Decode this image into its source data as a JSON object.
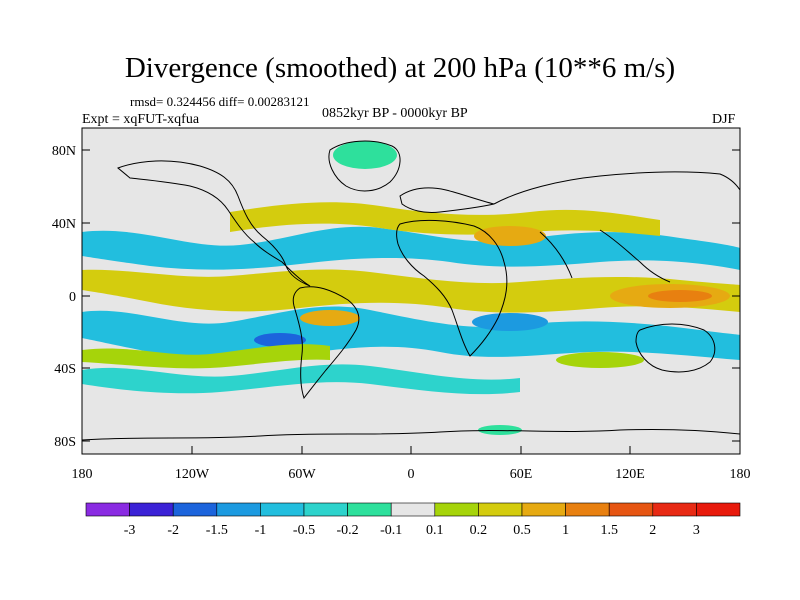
{
  "title": "Divergence (smoothed) at 200 hPa (10**6 m/s)",
  "stats": "rmsd= 0.324456 diff= 0.00283121",
  "experiment": "Expt = xqFUT-xqfua",
  "period": "0852kyr BP - 0000kyr BP",
  "season": "DJF",
  "lat_ticks": [
    "80N",
    "40N",
    "0",
    "40S",
    "80S"
  ],
  "lon_ticks": [
    "180",
    "120W",
    "60W",
    "0",
    "60E",
    "120E",
    "180"
  ],
  "colorbar": {
    "labels": [
      "-3",
      "-2",
      "-1.5",
      "-1",
      "-0.5",
      "-0.2",
      "-0.1",
      "0.1",
      "0.2",
      "0.5",
      "1",
      "1.5",
      "2",
      "3"
    ],
    "colors": [
      "#8a2be2",
      "#3b22d6",
      "#1c64dc",
      "#1c9ae0",
      "#22bede",
      "#2dd3cc",
      "#2ee09c",
      "#e6e6e6",
      "#a6d40a",
      "#d4cc0e",
      "#e6aa12",
      "#e88010",
      "#e65512",
      "#e82a14",
      "#e81a0c"
    ]
  },
  "colors": {
    "background": "#e6e6e6",
    "coast": "#000000"
  }
}
